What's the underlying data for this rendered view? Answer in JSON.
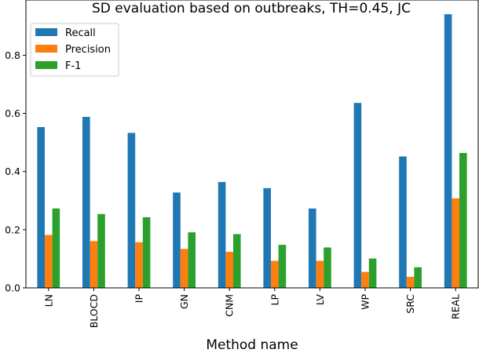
{
  "chart_data": {
    "type": "bar",
    "title": "SD evaluation based on outbreaks, TH=0.45, JC",
    "xlabel": "Method name",
    "ylabel": "",
    "categories": [
      "LN",
      "BLOCD",
      "IP",
      "GN",
      "CNM",
      "LP",
      "LV",
      "WP",
      "SRC",
      "REAL"
    ],
    "series": [
      {
        "name": "Recall",
        "color": "#1f77b4",
        "values": [
          0.553,
          0.588,
          0.533,
          0.328,
          0.364,
          0.343,
          0.273,
          0.636,
          0.452,
          0.941
        ]
      },
      {
        "name": "Precision",
        "color": "#ff7f0e",
        "values": [
          0.182,
          0.161,
          0.157,
          0.134,
          0.124,
          0.093,
          0.093,
          0.055,
          0.038,
          0.308
        ]
      },
      {
        "name": "F-1",
        "color": "#2ca02c",
        "values": [
          0.273,
          0.254,
          0.243,
          0.191,
          0.185,
          0.148,
          0.139,
          0.101,
          0.071,
          0.464
        ]
      }
    ],
    "ylim": [
      0,
      0.99
    ],
    "yticks": [
      0.0,
      0.2,
      0.4,
      0.6,
      0.8
    ],
    "ytick_labels": [
      "0.0",
      "0.2",
      "0.4",
      "0.6",
      "0.8"
    ],
    "grid": false,
    "legend_position": "top-left"
  }
}
